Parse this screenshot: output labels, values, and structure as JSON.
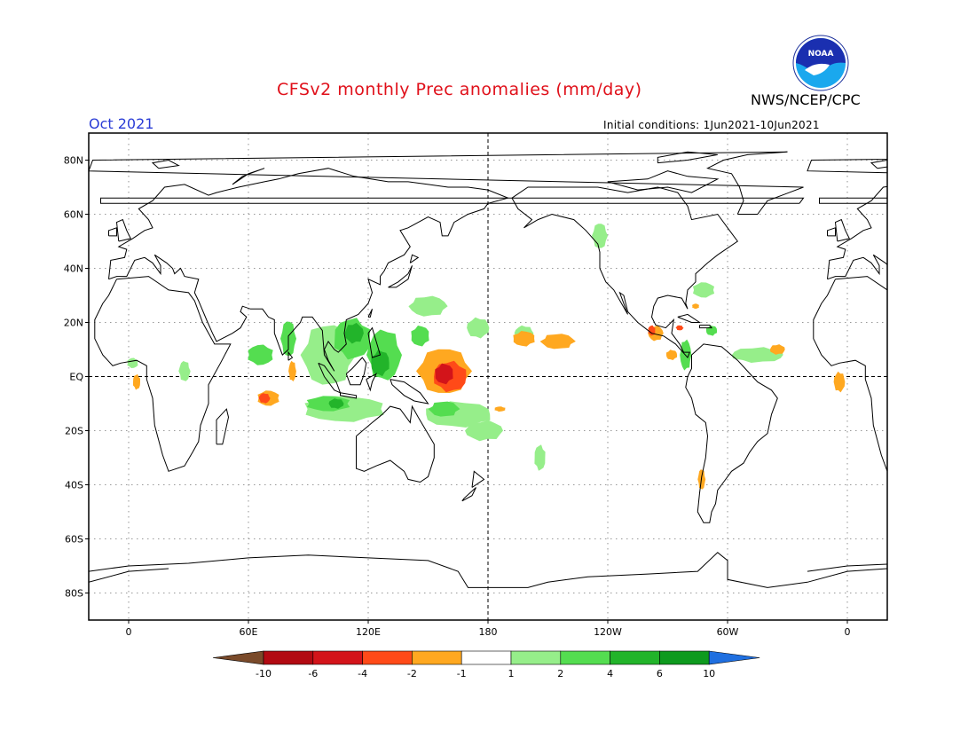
{
  "header": {
    "title": "CFSv2 monthly Prec anomalies (mm/day)",
    "agency": "NWS/NCEP/CPC",
    "logo_text": "NOAA",
    "month": "Oct 2021",
    "initial_conditions": "Initial conditions: 1Jun2021-10Jun2021"
  },
  "map": {
    "projection": "cylindrical-equidistant",
    "lon_range": [
      -20,
      380
    ],
    "lat_range": [
      -90,
      90
    ],
    "lat_labels": [
      "80N",
      "60N",
      "40N",
      "20N",
      "EQ",
      "20S",
      "40S",
      "60S",
      "80S"
    ],
    "lat_values": [
      80,
      60,
      40,
      20,
      0,
      -20,
      -40,
      -60,
      -80
    ],
    "lon_labels": [
      "0",
      "60E",
      "120E",
      "180",
      "120W",
      "60W",
      "0"
    ],
    "lon_values": [
      0,
      60,
      120,
      180,
      240,
      300,
      360
    ],
    "colors": {
      "coast": "#000000",
      "grid": "#777777"
    },
    "anomalies": [
      {
        "level": 2,
        "color": "#96ee8a",
        "blobs": [
          {
            "lon": 100,
            "lat": 8,
            "rx": 14,
            "ry": 12
          },
          {
            "lon": 108,
            "lat": -12,
            "rx": 22,
            "ry": 5
          },
          {
            "lon": 150,
            "lat": 26,
            "rx": 10,
            "ry": 4
          },
          {
            "lon": 165,
            "lat": -14,
            "rx": 18,
            "ry": 5
          },
          {
            "lon": 178,
            "lat": -20,
            "rx": 10,
            "ry": 4
          },
          {
            "lon": 175,
            "lat": 18,
            "rx": 6,
            "ry": 4
          },
          {
            "lon": 315,
            "lat": 8,
            "rx": 14,
            "ry": 3
          },
          {
            "lon": 198,
            "lat": 16,
            "rx": 5,
            "ry": 3
          },
          {
            "lon": 206,
            "lat": -30,
            "rx": 3,
            "ry": 5
          },
          {
            "lon": 28,
            "lat": 2,
            "rx": 3,
            "ry": 4
          },
          {
            "lon": 2,
            "lat": 5,
            "rx": 3,
            "ry": 2
          },
          {
            "lon": 236,
            "lat": 52,
            "rx": 4,
            "ry": 5
          },
          {
            "lon": 288,
            "lat": 32,
            "rx": 6,
            "ry": 3
          }
        ]
      },
      {
        "level": 4,
        "color": "#54dd50",
        "blobs": [
          {
            "lon": 112,
            "lat": 14,
            "rx": 10,
            "ry": 8
          },
          {
            "lon": 128,
            "lat": 8,
            "rx": 9,
            "ry": 10
          },
          {
            "lon": 66,
            "lat": 8,
            "rx": 7,
            "ry": 4
          },
          {
            "lon": 80,
            "lat": 14,
            "rx": 4,
            "ry": 7
          },
          {
            "lon": 100,
            "lat": -10,
            "rx": 12,
            "ry": 3
          },
          {
            "lon": 158,
            "lat": -12,
            "rx": 8,
            "ry": 3
          },
          {
            "lon": 146,
            "lat": 15,
            "rx": 5,
            "ry": 4
          },
          {
            "lon": 279,
            "lat": 8,
            "rx": 3,
            "ry": 6
          },
          {
            "lon": 292,
            "lat": 17,
            "rx": 3,
            "ry": 2
          }
        ]
      },
      {
        "level": 6,
        "color": "#22b42a",
        "blobs": [
          {
            "lon": 126,
            "lat": 5,
            "rx": 5,
            "ry": 5
          },
          {
            "lon": 113,
            "lat": 16,
            "rx": 5,
            "ry": 4
          },
          {
            "lon": 104,
            "lat": -10,
            "rx": 4,
            "ry": 2
          }
        ]
      },
      {
        "level": -1,
        "color": "#ffa820",
        "blobs": [
          {
            "lon": 158,
            "lat": 2,
            "rx": 14,
            "ry": 9
          },
          {
            "lon": 70,
            "lat": -8,
            "rx": 6,
            "ry": 3
          },
          {
            "lon": 215,
            "lat": 13,
            "rx": 9,
            "ry": 3
          },
          {
            "lon": 198,
            "lat": 14,
            "rx": 6,
            "ry": 3
          },
          {
            "lon": 264,
            "lat": 16,
            "rx": 4,
            "ry": 3
          },
          {
            "lon": 272,
            "lat": 8,
            "rx": 3,
            "ry": 2
          },
          {
            "lon": 325,
            "lat": 10,
            "rx": 4,
            "ry": 2
          },
          {
            "lon": 356,
            "lat": -2,
            "rx": 3,
            "ry": 4
          },
          {
            "lon": 4,
            "lat": -2,
            "rx": 2,
            "ry": 3
          },
          {
            "lon": 82,
            "lat": 2,
            "rx": 2,
            "ry": 4
          },
          {
            "lon": 186,
            "lat": -12,
            "rx": 3,
            "ry": 1
          },
          {
            "lon": 287,
            "lat": -38,
            "rx": 2,
            "ry": 4
          },
          {
            "lon": 284,
            "lat": 26,
            "rx": 2,
            "ry": 1
          }
        ]
      },
      {
        "level": -2,
        "color": "#ff4a18",
        "blobs": [
          {
            "lon": 161,
            "lat": 0,
            "rx": 9,
            "ry": 6
          },
          {
            "lon": 68,
            "lat": -8,
            "rx": 3,
            "ry": 2
          },
          {
            "lon": 262,
            "lat": 17,
            "rx": 2,
            "ry": 2
          },
          {
            "lon": 276,
            "lat": 18,
            "rx": 2,
            "ry": 1
          }
        ]
      },
      {
        "level": -4,
        "color": "#d3141a",
        "blobs": [
          {
            "lon": 158,
            "lat": 1,
            "rx": 5,
            "ry": 4
          }
        ]
      }
    ]
  },
  "colorbar": {
    "labels": [
      "-10",
      "-6",
      "-4",
      "-2",
      "-1",
      "1",
      "2",
      "4",
      "6",
      "10"
    ],
    "colors": [
      "#7a4a2a",
      "#b20a12",
      "#d3141a",
      "#ff4a18",
      "#ffa820",
      "#ffffff",
      "#96ee8a",
      "#54dd50",
      "#22b42a",
      "#0e9a1e",
      "#1f6fe0"
    ]
  }
}
